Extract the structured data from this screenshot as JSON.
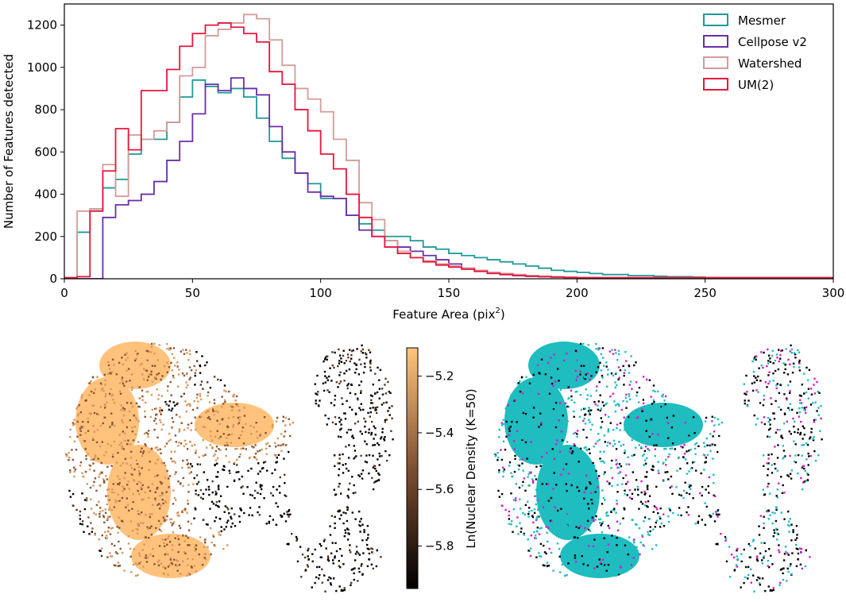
{
  "chart_data": [
    {
      "type": "histogram",
      "xlabel": "Feature Area (pix",
      "xlabel_sup": "2",
      "xlabel_tail": ")",
      "ylabel": "Number of Features detected",
      "xlim": [
        0,
        300
      ],
      "ylim": [
        0,
        1300
      ],
      "xticks": [
        0,
        50,
        100,
        150,
        200,
        250,
        300
      ],
      "yticks": [
        0,
        200,
        400,
        600,
        800,
        1000,
        1200
      ],
      "legend_position": "top-right",
      "bin_width": 5,
      "bin_start": 0,
      "series": [
        {
          "name": "Mesmer",
          "color": "#1f9a96",
          "values": [
            5,
            220,
            330,
            430,
            470,
            590,
            660,
            660,
            740,
            860,
            940,
            910,
            880,
            900,
            860,
            760,
            650,
            570,
            500,
            450,
            380,
            380,
            300,
            260,
            230,
            200,
            200,
            180,
            150,
            140,
            120,
            110,
            100,
            90,
            80,
            70,
            60,
            50,
            40,
            35,
            30,
            25,
            20,
            20,
            15,
            15,
            12,
            10,
            10,
            8,
            6,
            5,
            5,
            5,
            5,
            5,
            5,
            5,
            5,
            5
          ]
        },
        {
          "name": "Cellpose v2",
          "color": "#6a2ea8",
          "values": [
            0,
            0,
            0,
            290,
            350,
            370,
            400,
            460,
            560,
            650,
            780,
            920,
            890,
            950,
            900,
            870,
            720,
            600,
            500,
            410,
            390,
            380,
            300,
            230,
            200,
            180,
            150,
            130,
            110,
            90,
            70,
            50,
            40,
            30,
            20,
            15,
            12,
            10,
            8,
            6,
            5,
            5,
            5,
            5,
            5,
            5,
            5,
            5,
            5,
            5,
            5,
            5,
            5,
            5,
            5,
            5,
            5,
            5,
            5,
            5
          ]
        },
        {
          "name": "Watershed",
          "color": "#d39c98",
          "values": [
            5,
            320,
            330,
            540,
            390,
            680,
            660,
            700,
            740,
            960,
            1000,
            1150,
            1180,
            1210,
            1250,
            1230,
            1130,
            1010,
            900,
            850,
            790,
            660,
            560,
            360,
            280,
            180,
            130,
            100,
            85,
            70,
            60,
            50,
            40,
            30,
            25,
            20,
            15,
            12,
            10,
            8,
            6,
            5,
            5,
            5,
            5,
            5,
            5,
            5,
            5,
            5,
            5,
            5,
            5,
            5,
            5,
            5,
            5,
            5,
            5,
            5
          ]
        },
        {
          "name": "UM(2)",
          "color": "#e8163c",
          "values": [
            5,
            10,
            320,
            510,
            710,
            610,
            890,
            890,
            990,
            1100,
            1160,
            1200,
            1210,
            1190,
            1160,
            1120,
            980,
            920,
            800,
            700,
            590,
            520,
            400,
            290,
            200,
            150,
            120,
            100,
            80,
            65,
            55,
            45,
            35,
            25,
            20,
            15,
            12,
            10,
            8,
            6,
            5,
            5,
            5,
            5,
            5,
            5,
            5,
            5,
            5,
            5,
            5,
            5,
            5,
            5,
            5,
            5,
            5,
            5,
            5,
            5
          ]
        }
      ]
    },
    {
      "type": "scatter",
      "title": "",
      "colorbar": {
        "label": "Ln(Nuclear Density (K=50)",
        "colormap": "copper",
        "ticks": [
          -5.2,
          -5.4,
          -5.6,
          -5.8
        ],
        "tick_labels": [
          "−5.2",
          "−5.4",
          "−5.6",
          "−5.8"
        ],
        "range": [
          -5.95,
          -5.1
        ]
      }
    },
    {
      "type": "scatter",
      "title": "",
      "colors": [
        "#1fbcc0",
        "#d21ec8",
        "#000000"
      ]
    }
  ]
}
